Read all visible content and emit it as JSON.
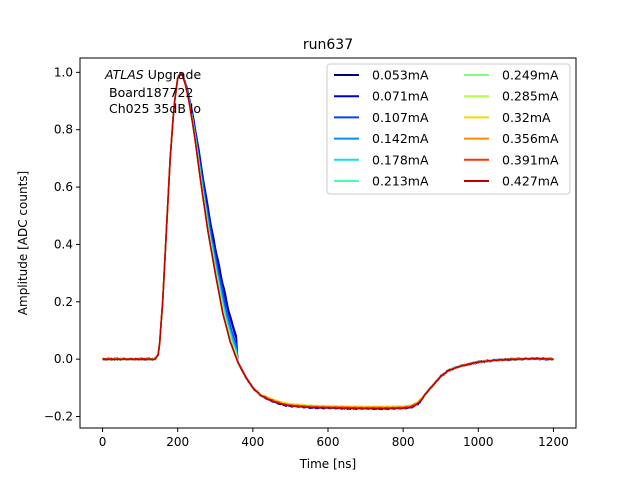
{
  "chart_data": {
    "type": "line",
    "title": "run637",
    "xlabel": "Time [ns]",
    "ylabel": "Amplitude [ADC counts]",
    "xlim": [
      -60,
      1260
    ],
    "ylim": [
      -0.24,
      1.05
    ],
    "xticks": [
      0,
      200,
      400,
      600,
      800,
      1000,
      1200
    ],
    "yticks": [
      -0.2,
      0.0,
      0.2,
      0.4,
      0.6,
      0.8,
      1.0
    ],
    "xtick_labels": [
      "0",
      "200",
      "400",
      "600",
      "800",
      "1000",
      "1200"
    ],
    "ytick_labels": [
      "−0.2",
      "0.0",
      "0.2",
      "0.4",
      "0.6",
      "0.8",
      "1.0"
    ],
    "annotation": {
      "line1_italic": "ATLAS",
      "line1_rest": " Upgrade",
      "line2": "Board187722",
      "line3": "Ch025 35dB lo"
    },
    "legend_position": "top-right",
    "base_x": [
      0,
      140,
      150,
      160,
      170,
      180,
      190,
      200,
      210,
      220,
      230,
      240,
      250,
      260,
      280,
      300,
      320,
      340,
      360,
      380,
      400,
      420,
      440,
      460,
      480,
      500,
      550,
      600,
      650,
      700,
      750,
      800,
      820,
      840,
      850,
      860,
      880,
      900,
      920,
      950,
      1000,
      1050,
      1100,
      1150,
      1200
    ],
    "base_y": [
      0.0,
      0.0,
      0.02,
      0.2,
      0.45,
      0.7,
      0.88,
      0.98,
      1.0,
      0.96,
      0.9,
      0.82,
      0.73,
      0.63,
      0.45,
      0.3,
      0.16,
      0.06,
      -0.01,
      -0.06,
      -0.1,
      -0.125,
      -0.14,
      -0.15,
      -0.158,
      -0.163,
      -0.168,
      -0.17,
      -0.171,
      -0.172,
      -0.172,
      -0.171,
      -0.168,
      -0.155,
      -0.14,
      -0.12,
      -0.09,
      -0.06,
      -0.04,
      -0.025,
      -0.01,
      -0.003,
      0.0,
      0.002,
      0.0
    ],
    "series": [
      {
        "name": "0.053mA",
        "color": "#000080",
        "width_scale": 1.16,
        "tail_offset": 0.0,
        "noise": 0.004
      },
      {
        "name": "0.071mA",
        "color": "#0000d5",
        "width_scale": 1.14,
        "tail_offset": 0.0,
        "noise": 0.004
      },
      {
        "name": "0.107mA",
        "color": "#0044ff",
        "width_scale": 1.1,
        "tail_offset": 0.001,
        "noise": 0.003
      },
      {
        "name": "0.142mA",
        "color": "#0090ff",
        "width_scale": 1.07,
        "tail_offset": 0.002,
        "noise": 0.003
      },
      {
        "name": "0.178mA",
        "color": "#0fe0e7",
        "width_scale": 1.05,
        "tail_offset": 0.003,
        "noise": 0.003
      },
      {
        "name": "0.213mA",
        "color": "#46ffb1",
        "width_scale": 1.03,
        "tail_offset": 0.004,
        "noise": 0.002
      },
      {
        "name": "0.249mA",
        "color": "#7dff7a",
        "width_scale": 1.02,
        "tail_offset": 0.006,
        "noise": 0.002
      },
      {
        "name": "0.285mA",
        "color": "#b4ff43",
        "width_scale": 1.01,
        "tail_offset": 0.007,
        "noise": 0.002
      },
      {
        "name": "0.32mA",
        "color": "#ffd400",
        "width_scale": 1.0,
        "tail_offset": 0.006,
        "noise": 0.002
      },
      {
        "name": "0.356mA",
        "color": "#ff8c00",
        "width_scale": 1.0,
        "tail_offset": 0.004,
        "noise": 0.002
      },
      {
        "name": "0.391mA",
        "color": "#ff3000",
        "width_scale": 1.0,
        "tail_offset": 0.002,
        "noise": 0.002
      },
      {
        "name": "0.427mA",
        "color": "#c00000",
        "width_scale": 1.0,
        "tail_offset": 0.0,
        "noise": 0.002
      }
    ]
  }
}
